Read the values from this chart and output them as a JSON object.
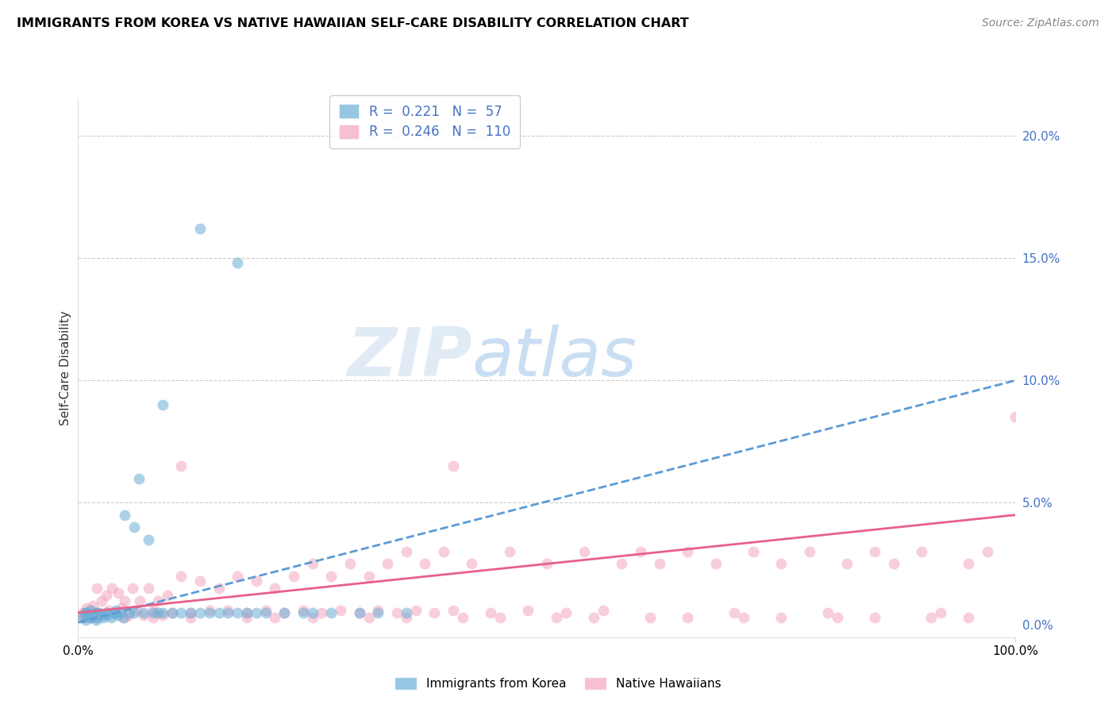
{
  "title": "IMMIGRANTS FROM KOREA VS NATIVE HAWAIIAN SELF-CARE DISABILITY CORRELATION CHART",
  "source": "Source: ZipAtlas.com",
  "ylabel": "Self-Care Disability",
  "yticks": [
    0.0,
    0.05,
    0.1,
    0.15,
    0.2
  ],
  "ytick_labels": [
    "0.0%",
    "5.0%",
    "10.0%",
    "15.0%",
    "20.0%"
  ],
  "xtick_labels": [
    "0.0%",
    "100.0%"
  ],
  "xlim": [
    0.0,
    1.0
  ],
  "ylim": [
    -0.005,
    0.215
  ],
  "blue_color": "#6baed6",
  "pink_color": "#f4a6c0",
  "pink_line_color": "#e8608a",
  "blue_line_color": "#5b9bd5",
  "watermark_zip": "ZIP",
  "watermark_atlas": "atlas",
  "legend_R1": "R =  0.221",
  "legend_N1": "N =  57",
  "legend_R2": "R =  0.246",
  "legend_N2": "N =  110",
  "legend1_label": "Immigrants from Korea",
  "legend2_label": "Native Hawaiians",
  "blue_line_x0": 0.0,
  "blue_line_y0": 0.001,
  "blue_line_x1": 1.0,
  "blue_line_y1": 0.1,
  "pink_line_x0": 0.0,
  "pink_line_y0": 0.005,
  "pink_line_x1": 1.0,
  "pink_line_y1": 0.045,
  "blue_scatter_x": [
    0.005,
    0.007,
    0.008,
    0.01,
    0.012,
    0.013,
    0.015,
    0.016,
    0.018,
    0.019,
    0.02,
    0.022,
    0.025,
    0.027,
    0.03,
    0.032,
    0.035,
    0.038,
    0.04,
    0.042,
    0.045,
    0.048,
    0.05,
    0.055,
    0.06,
    0.065,
    0.07,
    0.075,
    0.08,
    0.085,
    0.09,
    0.1,
    0.11,
    0.12,
    0.13,
    0.14,
    0.15,
    0.16,
    0.17,
    0.18,
    0.19,
    0.2,
    0.22,
    0.24,
    0.25,
    0.27,
    0.3,
    0.32,
    0.35,
    0.17,
    0.13,
    0.09,
    0.06,
    0.04,
    0.02,
    0.01,
    0.008
  ],
  "blue_scatter_y": [
    0.003,
    0.005,
    0.002,
    0.004,
    0.003,
    0.006,
    0.003,
    0.004,
    0.005,
    0.002,
    0.003,
    0.005,
    0.004,
    0.003,
    0.005,
    0.004,
    0.003,
    0.005,
    0.006,
    0.004,
    0.005,
    0.003,
    0.045,
    0.005,
    0.04,
    0.06,
    0.005,
    0.035,
    0.005,
    0.005,
    0.09,
    0.005,
    0.005,
    0.005,
    0.005,
    0.005,
    0.005,
    0.005,
    0.005,
    0.005,
    0.005,
    0.005,
    0.005,
    0.005,
    0.005,
    0.005,
    0.005,
    0.005,
    0.005,
    0.148,
    0.162,
    0.005,
    0.005,
    0.005,
    0.005,
    0.005,
    0.005
  ],
  "pink_scatter_x": [
    0.003,
    0.005,
    0.007,
    0.009,
    0.01,
    0.012,
    0.014,
    0.016,
    0.018,
    0.02,
    0.022,
    0.025,
    0.028,
    0.03,
    0.033,
    0.036,
    0.04,
    0.043,
    0.046,
    0.05,
    0.054,
    0.058,
    0.062,
    0.066,
    0.07,
    0.075,
    0.08,
    0.085,
    0.09,
    0.095,
    0.1,
    0.11,
    0.12,
    0.13,
    0.14,
    0.15,
    0.16,
    0.17,
    0.18,
    0.19,
    0.2,
    0.21,
    0.22,
    0.23,
    0.24,
    0.25,
    0.26,
    0.27,
    0.28,
    0.29,
    0.3,
    0.31,
    0.32,
    0.33,
    0.34,
    0.35,
    0.36,
    0.37,
    0.38,
    0.39,
    0.4,
    0.42,
    0.44,
    0.46,
    0.48,
    0.5,
    0.52,
    0.54,
    0.56,
    0.58,
    0.6,
    0.62,
    0.65,
    0.68,
    0.7,
    0.72,
    0.75,
    0.78,
    0.8,
    0.82,
    0.85,
    0.87,
    0.9,
    0.92,
    0.95,
    0.97,
    1.0,
    0.02,
    0.05,
    0.08,
    0.12,
    0.18,
    0.25,
    0.35,
    0.45,
    0.55,
    0.65,
    0.75,
    0.85,
    0.95,
    0.11,
    0.21,
    0.31,
    0.41,
    0.51,
    0.61,
    0.71,
    0.81,
    0.91,
    0.4
  ],
  "pink_scatter_y": [
    0.003,
    0.005,
    0.003,
    0.007,
    0.004,
    0.006,
    0.003,
    0.008,
    0.004,
    0.015,
    0.005,
    0.01,
    0.004,
    0.012,
    0.006,
    0.015,
    0.005,
    0.013,
    0.007,
    0.01,
    0.004,
    0.015,
    0.006,
    0.01,
    0.004,
    0.015,
    0.006,
    0.01,
    0.004,
    0.012,
    0.005,
    0.02,
    0.005,
    0.018,
    0.006,
    0.015,
    0.006,
    0.02,
    0.005,
    0.018,
    0.006,
    0.015,
    0.005,
    0.02,
    0.006,
    0.025,
    0.005,
    0.02,
    0.006,
    0.025,
    0.005,
    0.02,
    0.006,
    0.025,
    0.005,
    0.03,
    0.006,
    0.025,
    0.005,
    0.03,
    0.006,
    0.025,
    0.005,
    0.03,
    0.006,
    0.025,
    0.005,
    0.03,
    0.006,
    0.025,
    0.03,
    0.025,
    0.03,
    0.025,
    0.005,
    0.03,
    0.025,
    0.03,
    0.005,
    0.025,
    0.03,
    0.025,
    0.03,
    0.005,
    0.025,
    0.03,
    0.085,
    0.003,
    0.003,
    0.003,
    0.003,
    0.003,
    0.003,
    0.003,
    0.003,
    0.003,
    0.003,
    0.003,
    0.003,
    0.003,
    0.065,
    0.003,
    0.003,
    0.003,
    0.003,
    0.003,
    0.003,
    0.003,
    0.003,
    0.065
  ]
}
